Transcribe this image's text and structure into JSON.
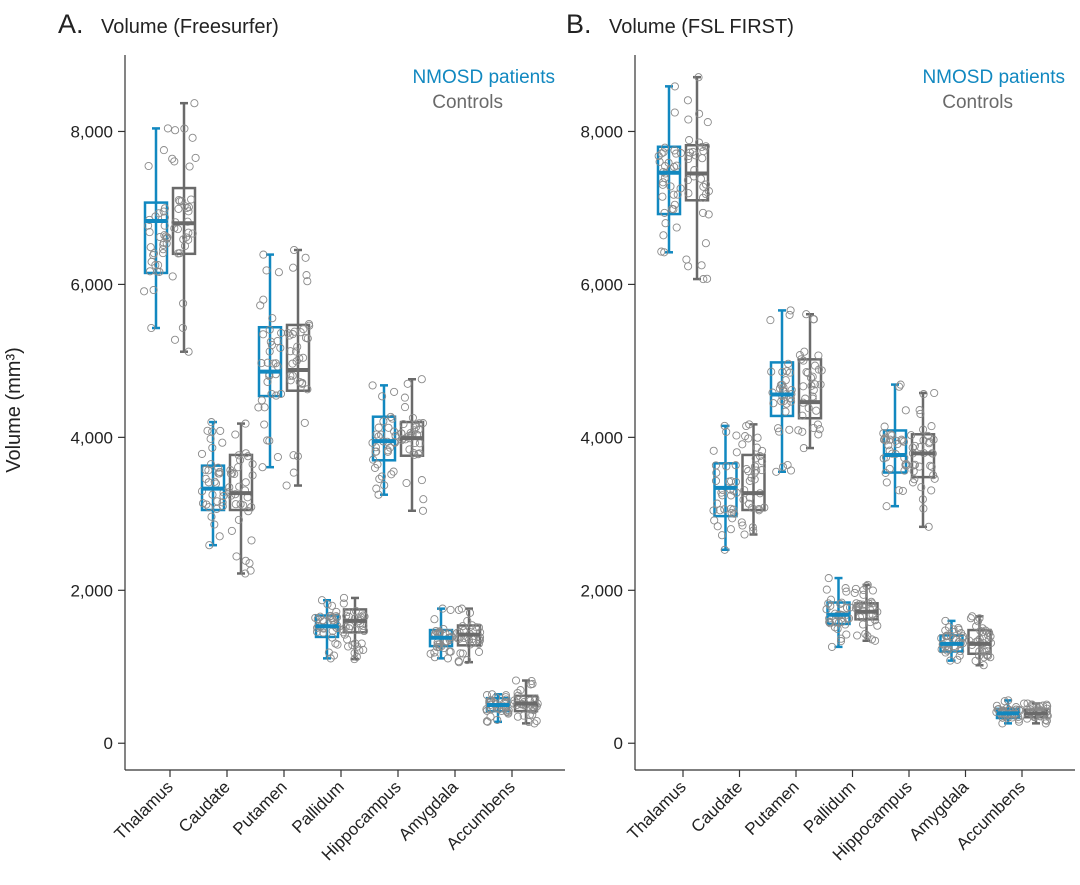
{
  "colors": {
    "nmosd": "#1188c0",
    "controls": "#6a6a6a",
    "axis": "#333333",
    "text": "#222222"
  },
  "y_axis_label": "Volume (mm³)",
  "chart_data": [
    {
      "type": "box",
      "panel_letter": "A.",
      "title": "Volume (Freesurfer)",
      "ylim": [
        -350,
        9000
      ],
      "y_ticks": [
        0,
        2000,
        4000,
        6000,
        8000
      ],
      "y_tick_labels": [
        "0",
        "2,000",
        "4,000",
        "6,000",
        "8,000"
      ],
      "categories": [
        "Thalamus",
        "Caudate",
        "Putamen",
        "Pallidum",
        "Hippocampus",
        "Amygdala",
        "Accumbens"
      ],
      "legend": [
        "NMOSD patients",
        "Controls"
      ],
      "legend_position": "top-right",
      "series": [
        {
          "name": "NMOSD patients",
          "boxes": [
            {
              "min": 5430,
              "q1": 6150,
              "median": 6830,
              "q3": 7070,
              "max": 8040
            },
            {
              "min": 2590,
              "q1": 3050,
              "median": 3330,
              "q3": 3630,
              "max": 4200
            },
            {
              "min": 3610,
              "q1": 4540,
              "median": 4860,
              "q3": 5440,
              "max": 6390
            },
            {
              "min": 1110,
              "q1": 1390,
              "median": 1530,
              "q3": 1670,
              "max": 1870
            },
            {
              "min": 3250,
              "q1": 3700,
              "median": 3950,
              "q3": 4270,
              "max": 4680
            },
            {
              "min": 1110,
              "q1": 1270,
              "median": 1380,
              "q3": 1480,
              "max": 1760
            },
            {
              "min": 280,
              "q1": 420,
              "median": 500,
              "q3": 590,
              "max": 640
            }
          ]
        },
        {
          "name": "Controls",
          "boxes": [
            {
              "min": 5120,
              "q1": 6400,
              "median": 6800,
              "q3": 7260,
              "max": 8370
            },
            {
              "min": 2220,
              "q1": 3050,
              "median": 3270,
              "q3": 3770,
              "max": 4180
            },
            {
              "min": 3370,
              "q1": 4610,
              "median": 4880,
              "q3": 5470,
              "max": 6450
            },
            {
              "min": 1100,
              "q1": 1450,
              "median": 1600,
              "q3": 1750,
              "max": 1900
            },
            {
              "min": 3040,
              "q1": 3760,
              "median": 3990,
              "q3": 4200,
              "max": 4760
            },
            {
              "min": 1060,
              "q1": 1280,
              "median": 1420,
              "q3": 1540,
              "max": 1760
            },
            {
              "min": 260,
              "q1": 420,
              "median": 520,
              "q3": 620,
              "max": 820
            }
          ]
        }
      ]
    },
    {
      "type": "box",
      "panel_letter": "B.",
      "title": "Volume (FSL FIRST)",
      "ylim": [
        -350,
        9000
      ],
      "y_ticks": [
        0,
        2000,
        4000,
        6000,
        8000
      ],
      "y_tick_labels": [
        "0",
        "2,000",
        "4,000",
        "6,000",
        "8,000"
      ],
      "categories": [
        "Thalamus",
        "Caudate",
        "Putamen",
        "Pallidum",
        "Hippocampus",
        "Amygdala",
        "Accumbens"
      ],
      "legend": [
        "NMOSD patients",
        "Controls"
      ],
      "legend_position": "top-right",
      "series": [
        {
          "name": "NMOSD patients",
          "boxes": [
            {
              "min": 6420,
              "q1": 6920,
              "median": 7460,
              "q3": 7800,
              "max": 8590
            },
            {
              "min": 2530,
              "q1": 2970,
              "median": 3340,
              "q3": 3660,
              "max": 4150
            },
            {
              "min": 3550,
              "q1": 4280,
              "median": 4560,
              "q3": 4980,
              "max": 5660
            },
            {
              "min": 1260,
              "q1": 1560,
              "median": 1680,
              "q3": 1840,
              "max": 2160
            },
            {
              "min": 3100,
              "q1": 3540,
              "median": 3770,
              "q3": 4090,
              "max": 4690
            },
            {
              "min": 1080,
              "q1": 1200,
              "median": 1300,
              "q3": 1410,
              "max": 1600
            },
            {
              "min": 260,
              "q1": 330,
              "median": 390,
              "q3": 450,
              "max": 560
            }
          ]
        },
        {
          "name": "Controls",
          "boxes": [
            {
              "min": 6070,
              "q1": 7100,
              "median": 7450,
              "q3": 7820,
              "max": 8710
            },
            {
              "min": 2730,
              "q1": 3050,
              "median": 3270,
              "q3": 3770,
              "max": 4170
            },
            {
              "min": 3860,
              "q1": 4250,
              "median": 4460,
              "q3": 5020,
              "max": 5610
            },
            {
              "min": 1340,
              "q1": 1620,
              "median": 1720,
              "q3": 1830,
              "max": 2070
            },
            {
              "min": 2830,
              "q1": 3480,
              "median": 3790,
              "q3": 4040,
              "max": 4580
            },
            {
              "min": 1020,
              "q1": 1170,
              "median": 1300,
              "q3": 1480,
              "max": 1660
            },
            {
              "min": 260,
              "q1": 340,
              "median": 390,
              "q3": 440,
              "max": 520
            }
          ]
        }
      ]
    }
  ]
}
